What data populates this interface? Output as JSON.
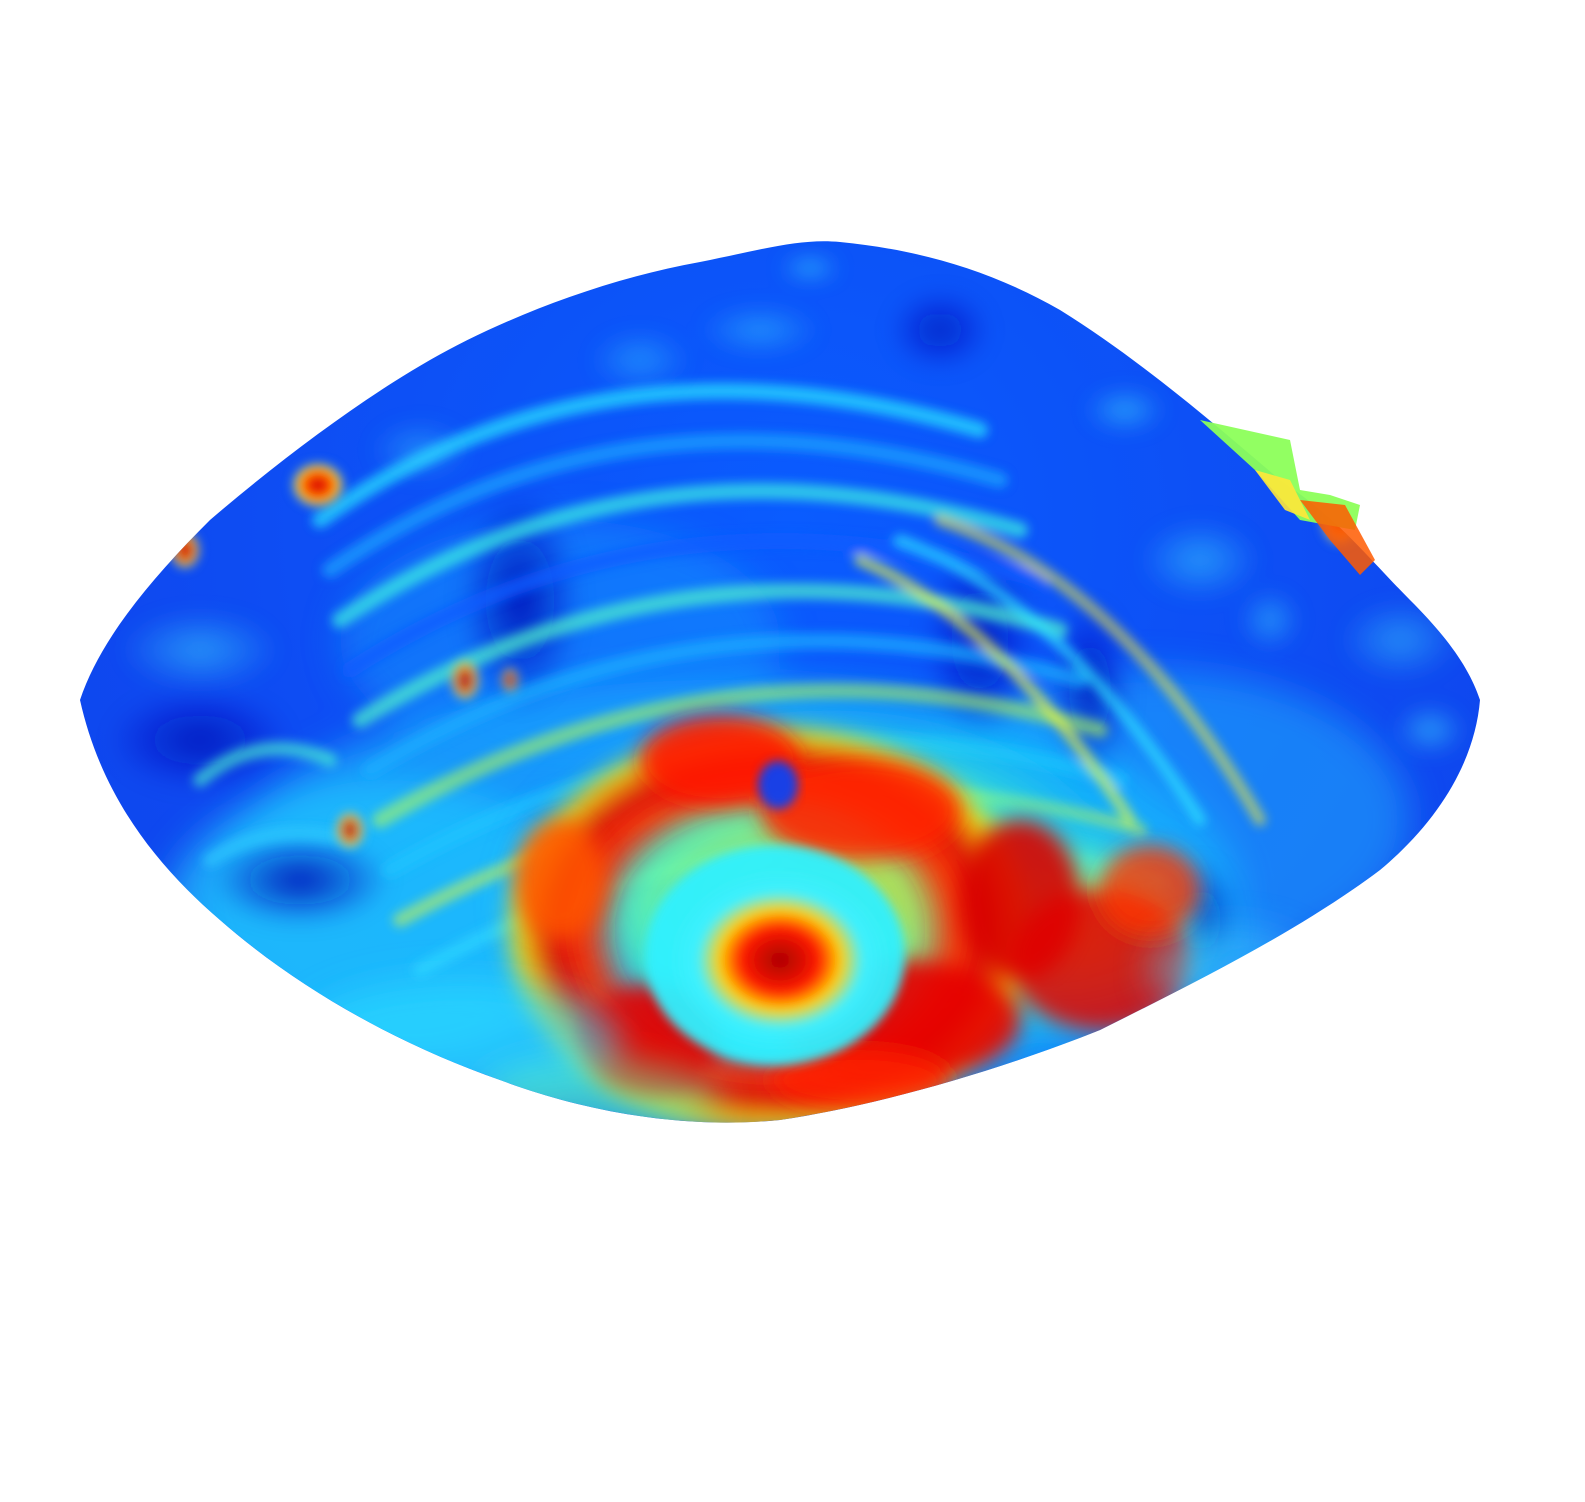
{
  "figure": {
    "kind": "3d-surface-heatmap",
    "colormap": "jet",
    "colormap_stops": [
      "#00008f",
      "#0033ff",
      "#00a6ff",
      "#00ffff",
      "#7dff7a",
      "#ffff00",
      "#ff9a00",
      "#ff2a00",
      "#8f0000"
    ],
    "background": "#ffffff",
    "has_axes": false,
    "has_colorbar": false,
    "has_legend": false
  }
}
